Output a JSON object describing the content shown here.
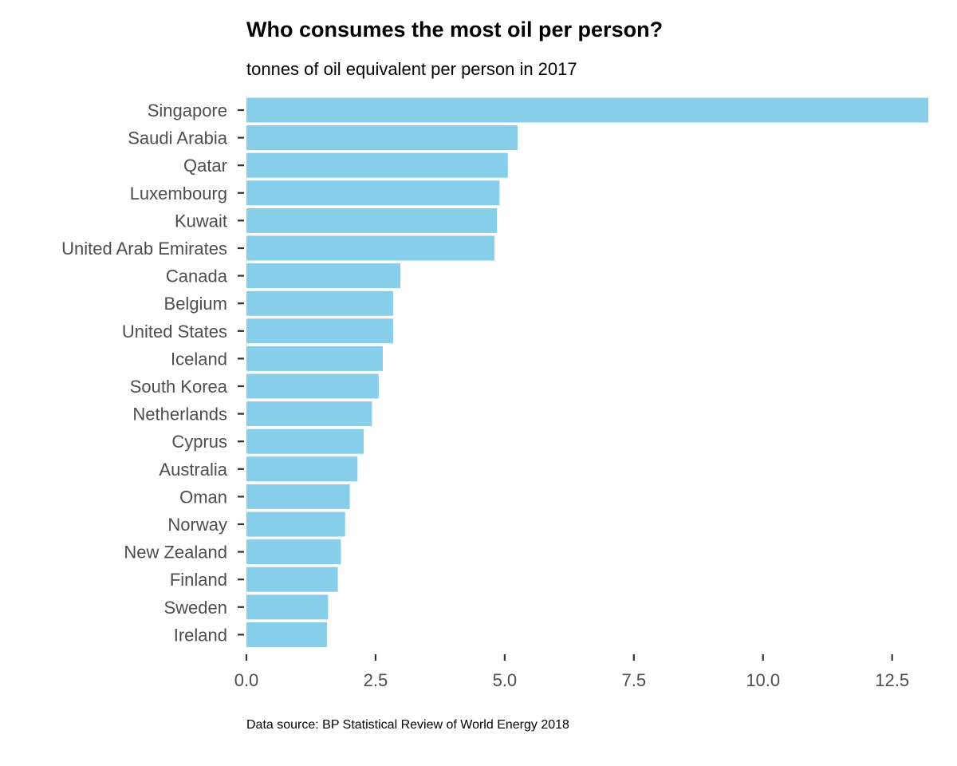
{
  "chart_data": {
    "type": "bar",
    "orientation": "horizontal",
    "title": "Who consumes the most oil per person?",
    "subtitle": "tonnes of oil equivalent per person in 2017",
    "caption": "Data source: BP Statistical Review of World Energy 2018",
    "xlabel": "",
    "ylabel": "",
    "categories": [
      "Singapore",
      "Saudi Arabia",
      "Qatar",
      "Luxembourg",
      "Kuwait",
      "United Arab Emirates",
      "Canada",
      "Belgium",
      "United States",
      "Iceland",
      "South Korea",
      "Netherlands",
      "Cyprus",
      "Australia",
      "Oman",
      "Norway",
      "New Zealand",
      "Finland",
      "Sweden",
      "Ireland"
    ],
    "values": [
      13.2,
      5.25,
      5.06,
      4.9,
      4.85,
      4.8,
      2.98,
      2.84,
      2.84,
      2.64,
      2.56,
      2.43,
      2.27,
      2.15,
      2.0,
      1.91,
      1.83,
      1.77,
      1.58,
      1.56
    ],
    "xticks": [
      "0.0",
      "2.5",
      "5.0",
      "7.5",
      "10.0",
      "12.5"
    ],
    "xtick_values": [
      0,
      2.5,
      5,
      7.5,
      10,
      12.5
    ],
    "xlim": [
      0,
      13.2
    ],
    "grid": false,
    "legend": "none",
    "bar_color": "#87ceeb",
    "text_color": "#4d4d4d"
  }
}
